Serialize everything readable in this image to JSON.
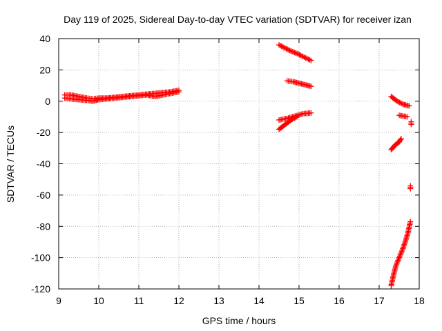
{
  "chart_data": {
    "type": "scatter",
    "title": "Day 119 of 2025, Sidereal Day-to-day VTEC variation (SDTVAR) for receiver izan",
    "xlabel": "GPS time / hours",
    "ylabel": "SDTVAR / TECUs",
    "xlim": [
      9,
      18
    ],
    "ylim": [
      -120,
      40
    ],
    "xticks": [
      9,
      10,
      11,
      12,
      13,
      14,
      15,
      16,
      17,
      18
    ],
    "yticks": [
      -120,
      -100,
      -80,
      -60,
      -40,
      -20,
      0,
      20,
      40
    ],
    "grid": true,
    "legend": "none",
    "marker": "plus",
    "color": "#ff0000",
    "series": [
      {
        "x": [
          9.15,
          9.3,
          9.5,
          9.7,
          9.85,
          10.0,
          10.2,
          10.4,
          10.6,
          10.8,
          11.0,
          11.2,
          11.4,
          11.6,
          11.8,
          12.0
        ],
        "y": [
          4,
          4,
          3,
          2,
          1.5,
          2,
          2,
          2.5,
          3,
          3.5,
          4,
          4.5,
          5,
          5.5,
          6,
          7
        ]
      },
      {
        "x": [
          9.15,
          9.3,
          9.5,
          9.7,
          9.85,
          10.0,
          10.2,
          10.4,
          10.6,
          10.8,
          11.0,
          11.2,
          11.4,
          11.6,
          11.8,
          12.0
        ],
        "y": [
          2,
          1.5,
          1,
          0.5,
          0,
          1,
          1.5,
          2,
          2.5,
          3,
          3.5,
          4,
          3,
          4,
          5,
          6
        ]
      },
      {
        "x": [
          14.5,
          14.65,
          14.8,
          14.95,
          15.1,
          15.3
        ],
        "y": [
          36,
          34,
          32,
          30.5,
          28.5,
          26
        ]
      },
      {
        "x": [
          14.7,
          14.85,
          15.0,
          15.15,
          15.3
        ],
        "y": [
          13,
          12.5,
          11.5,
          10.5,
          9.5
        ]
      },
      {
        "x": [
          14.5,
          14.7,
          14.9,
          15.1,
          15.3
        ],
        "y": [
          -12,
          -11,
          -9.5,
          -8,
          -7.5
        ]
      },
      {
        "x": [
          14.5,
          14.65,
          14.8,
          14.95
        ],
        "y": [
          -18,
          -15,
          -12,
          -10
        ]
      },
      {
        "x": [
          17.3,
          17.45,
          17.6,
          17.75
        ],
        "y": [
          3,
          0,
          -2,
          -3
        ]
      },
      {
        "x": [
          17.5,
          17.7
        ],
        "y": [
          -9,
          -10
        ]
      },
      {
        "x": [
          17.8
        ],
        "y": [
          -14
        ]
      },
      {
        "x": [
          17.3,
          17.4,
          17.5,
          17.55
        ],
        "y": [
          -31,
          -28,
          -26,
          -24
        ]
      },
      {
        "x": [
          17.78
        ],
        "y": [
          -55
        ]
      },
      {
        "x": [
          17.3,
          17.35,
          17.42,
          17.5,
          17.58,
          17.65,
          17.72,
          17.78
        ],
        "y": [
          -118,
          -112,
          -105,
          -100,
          -95,
          -90,
          -84,
          -77
        ]
      }
    ]
  }
}
